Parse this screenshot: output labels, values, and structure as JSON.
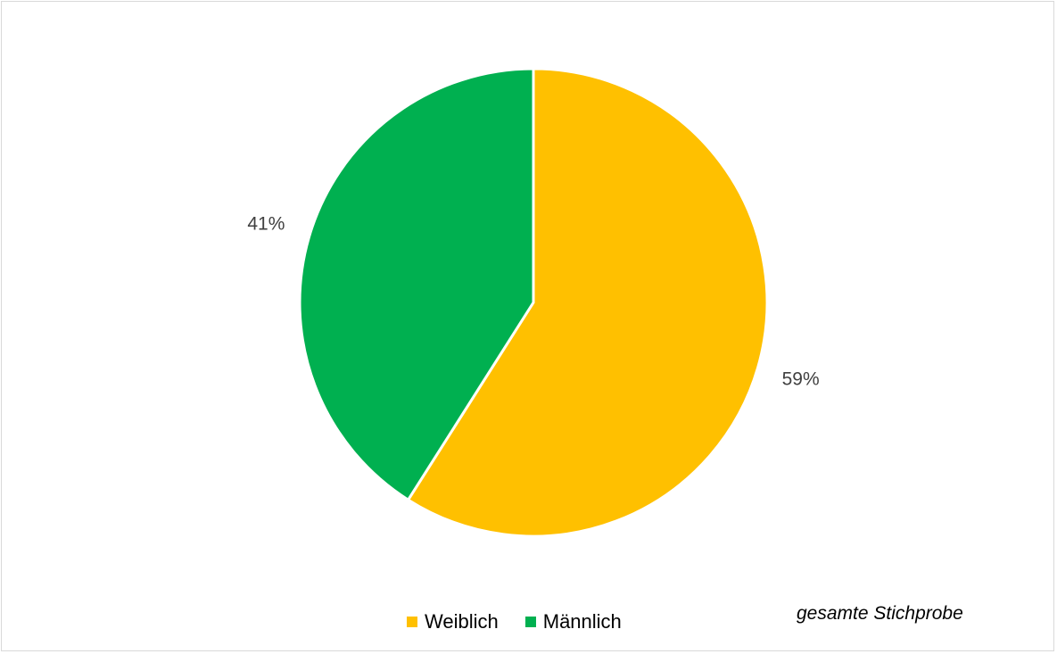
{
  "chart_data": {
    "type": "pie",
    "categories": [
      "Weiblich",
      "Männlich"
    ],
    "values": [
      59,
      41
    ],
    "data_labels": [
      "59%",
      "41%"
    ],
    "colors": [
      "#FFC000",
      "#00B050"
    ],
    "legend_position": "bottom",
    "start_angle_deg": 0,
    "direction": "clockwise"
  },
  "legend": {
    "items": [
      {
        "label": "Weiblich",
        "color": "#FFC000"
      },
      {
        "label": "Männlich",
        "color": "#00B050"
      }
    ]
  },
  "note": "gesamte Stichprobe"
}
